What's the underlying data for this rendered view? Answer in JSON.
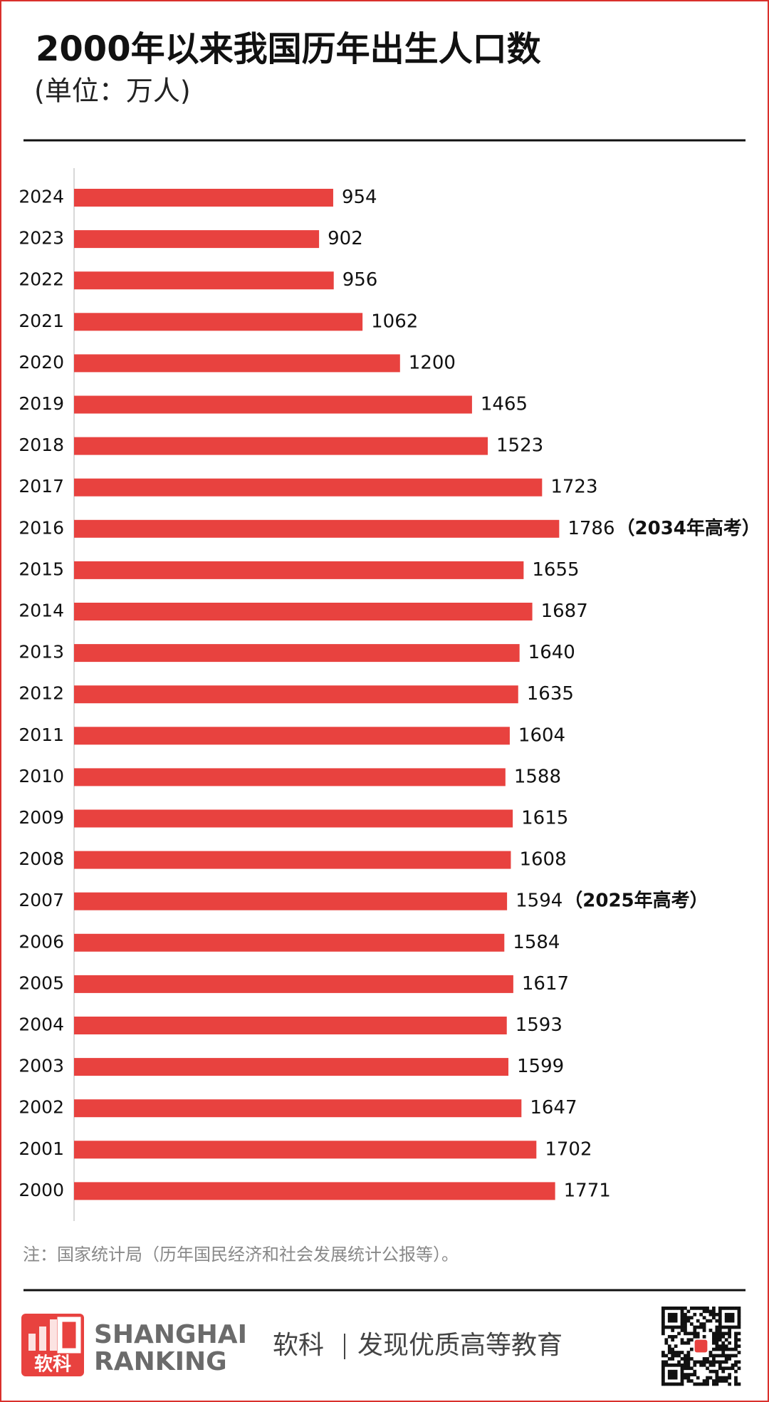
{
  "chart_data": {
    "type": "bar",
    "orientation": "horizontal",
    "title": "2000年以来我国历年出生人口数",
    "subtitle": "(单位：万人)",
    "categories": [
      "2024",
      "2023",
      "2022",
      "2021",
      "2020",
      "2019",
      "2018",
      "2017",
      "2016",
      "2015",
      "2014",
      "2013",
      "2012",
      "2011",
      "2010",
      "2009",
      "2008",
      "2007",
      "2006",
      "2005",
      "2004",
      "2003",
      "2002",
      "2001",
      "2000"
    ],
    "values": [
      954,
      902,
      956,
      1062,
      1200,
      1465,
      1523,
      1723,
      1786,
      1655,
      1687,
      1640,
      1635,
      1604,
      1588,
      1615,
      1608,
      1594,
      1584,
      1617,
      1593,
      1599,
      1647,
      1702,
      1771
    ],
    "color": "#e8423f",
    "xlim": [
      0,
      2000
    ],
    "annotations": [
      {
        "category": "2016",
        "text": "（2034年高考）"
      },
      {
        "category": "2007",
        "text": "（2025年高考）"
      }
    ],
    "note": "注：国家统计局（历年国民经济和社会发展统计公报等）。"
  },
  "footer": {
    "brand_line1": "SHANGHAI",
    "brand_line2": "RANKING",
    "logo_text": "软科",
    "slogan_brand": "软科",
    "slogan": "发现优质高等教育"
  }
}
